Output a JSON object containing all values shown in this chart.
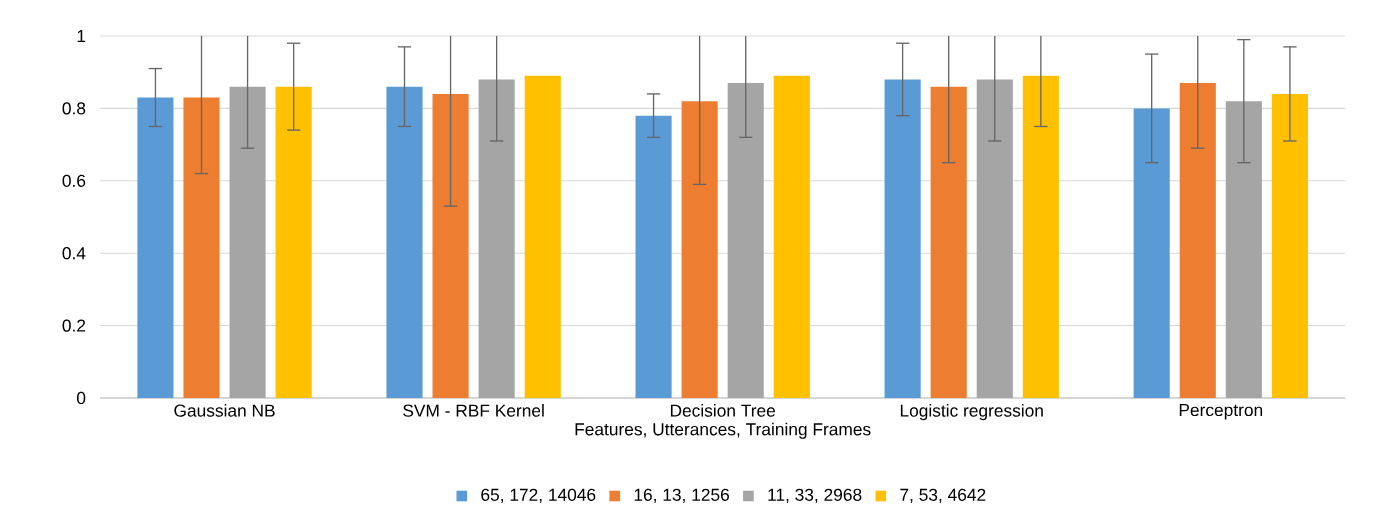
{
  "chart_data": {
    "type": "bar",
    "xlabel": "Features, Utterances, Training Frames",
    "categories": [
      "Gaussian NB",
      "SVM - RBF Kernel",
      "Decision Tree",
      "Logistic regression",
      "Perceptron"
    ],
    "series": [
      {
        "name": "65, 172, 14046",
        "color": "#5b9bd5",
        "values": [
          0.83,
          0.86,
          0.78,
          0.88,
          0.8
        ],
        "errors": [
          0.08,
          0.11,
          0.06,
          0.1,
          0.15
        ]
      },
      {
        "name": "16, 13, 1256",
        "color": "#ed7d31",
        "values": [
          0.83,
          0.84,
          0.82,
          0.86,
          0.87
        ],
        "errors": [
          [
            0.62,
            1
          ],
          [
            0.53,
            1
          ],
          [
            0.59,
            1
          ],
          [
            0.65,
            1
          ],
          [
            0.69,
            1
          ]
        ]
      },
      {
        "name": "11, 33, 2968",
        "color": "#a5a5a5",
        "values": [
          0.86,
          0.88,
          0.87,
          0.88,
          0.82
        ],
        "errors": [
          [
            0.69,
            1
          ],
          [
            0.71,
            1
          ],
          [
            0.72,
            1
          ],
          [
            0.71,
            1
          ],
          0.17
        ]
      },
      {
        "name": "7, 53, 4642",
        "color": "#ffc000",
        "values": [
          0.86,
          0.89,
          0.89,
          0.89,
          0.84
        ],
        "errors": [
          0.12,
          null,
          null,
          [
            0.75,
            1
          ],
          0.13
        ]
      }
    ],
    "ylim": [
      0,
      1
    ],
    "yticks": [
      0,
      0.2,
      0.4,
      0.6,
      0.8,
      1
    ],
    "grid": "y",
    "legend": "bottom"
  }
}
